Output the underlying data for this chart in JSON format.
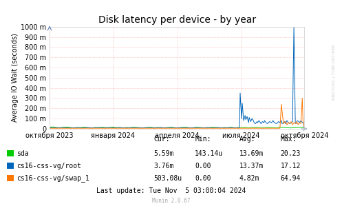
{
  "title": "Disk latency per device - by year",
  "ylabel": "Average IO Wait (seconds)",
  "background_color": "#ffffff",
  "plot_bg_color": "#ffffff",
  "grid_color": "#ff9999",
  "ylim": [
    0,
    1000
  ],
  "yticks": [
    0,
    100,
    200,
    300,
    400,
    500,
    600,
    700,
    800,
    900,
    1000
  ],
  "ytick_labels": [
    "0",
    "100 m",
    "200 m",
    "300 m",
    "400 m",
    "500 m",
    "600 m",
    "700 m",
    "800 m",
    "900 m",
    "1000 m"
  ],
  "x_start": 0,
  "x_end": 365,
  "xtick_positions": [
    0,
    91,
    183,
    274,
    365
  ],
  "xtick_labels": [
    "октября 2023",
    "января 2024",
    "апреля 2024",
    "июля 2024",
    "октября 2024"
  ],
  "series": [
    {
      "label": "sda",
      "color": "#00cc00",
      "data_x": [
        0,
        5,
        10,
        15,
        20,
        25,
        30,
        35,
        40,
        45,
        50,
        55,
        60,
        65,
        70,
        75,
        80,
        85,
        90,
        95,
        100,
        105,
        110,
        115,
        120,
        125,
        130,
        135,
        140,
        145,
        150,
        155,
        160,
        165,
        170,
        175,
        180,
        185,
        190,
        195,
        200,
        205,
        210,
        215,
        220,
        225,
        230,
        235,
        240,
        245,
        250,
        255,
        260,
        265,
        270,
        275,
        280,
        285,
        290,
        295,
        300,
        305,
        310,
        315,
        320,
        325,
        330,
        335,
        340,
        345,
        350,
        355,
        360,
        365
      ],
      "data_y": [
        15,
        18,
        12,
        10,
        14,
        16,
        12,
        8,
        10,
        12,
        15,
        10,
        8,
        12,
        10,
        14,
        12,
        10,
        15,
        12,
        10,
        8,
        12,
        10,
        14,
        12,
        10,
        8,
        12,
        14,
        10,
        12,
        8,
        10,
        12,
        14,
        10,
        8,
        12,
        14,
        10,
        8,
        14,
        12,
        10,
        8,
        12,
        14,
        10,
        8,
        12,
        10,
        14,
        8,
        12,
        10,
        14,
        8,
        12,
        14,
        10,
        8,
        12,
        14,
        10,
        8,
        14,
        12,
        10,
        8,
        10,
        12,
        14,
        10
      ]
    },
    {
      "label": "cs16-css-vg/root",
      "color": "#0066bb",
      "data_x": [
        0,
        5,
        10,
        15,
        20,
        25,
        30,
        35,
        40,
        45,
        50,
        55,
        60,
        65,
        70,
        75,
        80,
        85,
        90,
        95,
        100,
        105,
        110,
        115,
        120,
        125,
        130,
        135,
        140,
        145,
        150,
        155,
        160,
        165,
        170,
        175,
        180,
        185,
        190,
        195,
        200,
        205,
        210,
        215,
        220,
        225,
        230,
        235,
        240,
        245,
        250,
        255,
        260,
        265,
        270,
        272,
        273,
        275,
        276,
        278,
        280,
        281,
        283,
        285,
        286,
        288,
        290,
        292,
        293,
        295,
        297,
        298,
        300,
        302,
        303,
        305,
        307,
        308,
        310,
        312,
        315,
        318,
        320,
        322,
        325,
        328,
        330,
        332,
        333,
        335,
        337,
        338,
        340,
        342,
        344,
        346,
        348,
        350,
        352,
        353,
        355,
        357,
        358,
        360,
        361,
        363,
        364,
        365
      ],
      "data_y": [
        10,
        12,
        8,
        10,
        12,
        10,
        8,
        10,
        12,
        8,
        10,
        12,
        8,
        10,
        12,
        10,
        8,
        12,
        10,
        8,
        12,
        10,
        8,
        10,
        12,
        10,
        8,
        10,
        12,
        10,
        8,
        10,
        12,
        8,
        10,
        12,
        8,
        10,
        12,
        10,
        8,
        10,
        12,
        10,
        8,
        12,
        10,
        8,
        12,
        10,
        8,
        10,
        12,
        10,
        8,
        10,
        350,
        100,
        250,
        80,
        130,
        90,
        120,
        60,
        110,
        70,
        100,
        80,
        60,
        50,
        70,
        60,
        80,
        60,
        50,
        70,
        60,
        80,
        60,
        50,
        70,
        60,
        80,
        60,
        50,
        70,
        60,
        80,
        50,
        60,
        70,
        50,
        80,
        60,
        50,
        60,
        70,
        1000,
        60,
        50,
        80,
        70,
        60,
        80,
        70,
        60,
        50,
        10
      ]
    },
    {
      "label": "cs16-css-vg/swap_1",
      "color": "#ff7700",
      "data_x": [
        0,
        5,
        10,
        15,
        20,
        25,
        30,
        35,
        40,
        45,
        50,
        55,
        60,
        65,
        70,
        75,
        80,
        85,
        90,
        95,
        100,
        105,
        110,
        115,
        120,
        125,
        130,
        135,
        140,
        145,
        150,
        155,
        160,
        165,
        170,
        175,
        180,
        185,
        190,
        195,
        200,
        205,
        210,
        215,
        220,
        225,
        230,
        235,
        240,
        245,
        250,
        255,
        260,
        265,
        270,
        275,
        280,
        285,
        290,
        295,
        300,
        305,
        310,
        315,
        320,
        325,
        330,
        332,
        335,
        338,
        340,
        342,
        344,
        346,
        348,
        350,
        352,
        354,
        356,
        358,
        360,
        362,
        363,
        364,
        365
      ],
      "data_y": [
        5,
        5,
        5,
        5,
        5,
        5,
        5,
        5,
        5,
        5,
        5,
        5,
        5,
        5,
        5,
        5,
        5,
        5,
        5,
        5,
        5,
        5,
        5,
        5,
        5,
        5,
        5,
        5,
        5,
        5,
        5,
        5,
        5,
        5,
        5,
        5,
        5,
        5,
        5,
        5,
        5,
        5,
        5,
        5,
        5,
        5,
        5,
        5,
        5,
        5,
        5,
        5,
        5,
        5,
        5,
        5,
        5,
        5,
        5,
        5,
        5,
        5,
        5,
        5,
        5,
        5,
        5,
        240,
        50,
        70,
        40,
        60,
        50,
        70,
        40,
        60,
        50,
        70,
        40,
        60,
        50,
        300,
        80,
        50,
        5
      ]
    }
  ],
  "legend_data": [
    {
      "label": "sda",
      "color": "#00cc00",
      "cur": "5.59m",
      "min": "143.14u",
      "avg": "13.69m",
      "max": "20.23"
    },
    {
      "label": "cs16-css-vg/root",
      "color": "#0066bb",
      "cur": "3.76m",
      "min": "0.00",
      "avg": "13.37m",
      "max": "17.12"
    },
    {
      "label": "cs16-css-vg/swap_1",
      "color": "#ff7700",
      "cur": "503.08u",
      "min": "0.00",
      "avg": "4.82m",
      "max": "64.94"
    }
  ],
  "last_update": "Last update: Tue Nov  5 03:00:04 2024",
  "munin_version": "Munin 2.0.67",
  "watermark": "RRDTOOL / TOBI OETIKER",
  "title_fontsize": 10,
  "axis_fontsize": 7,
  "legend_fontsize": 7,
  "line_width": 0.7
}
